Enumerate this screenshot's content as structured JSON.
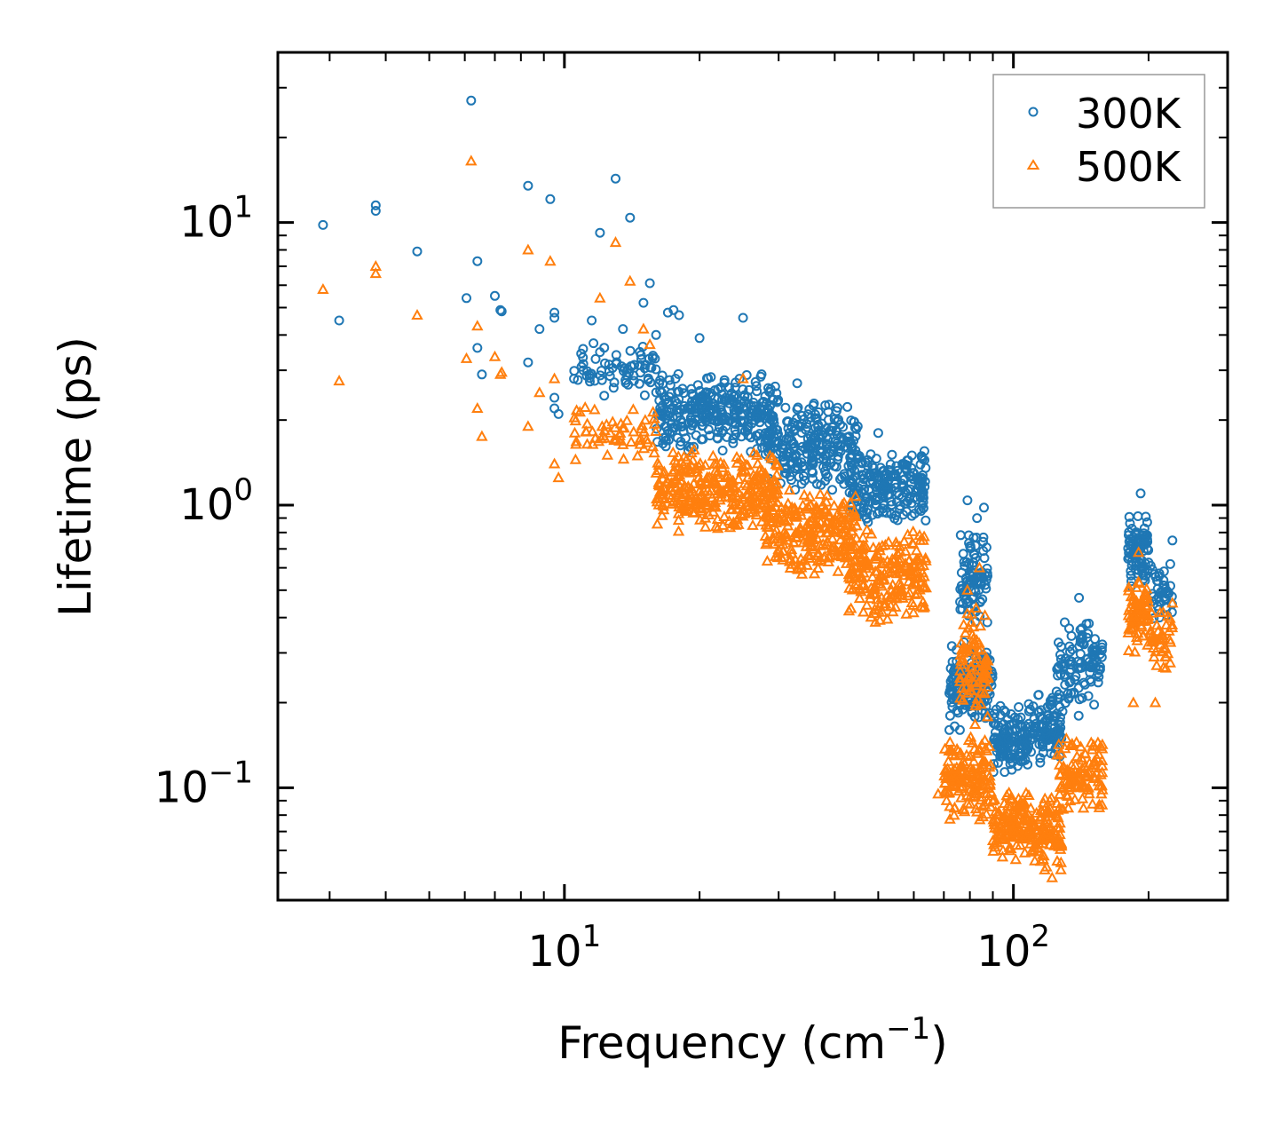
{
  "chart_data": {
    "type": "scatter",
    "xscale": "log",
    "yscale": "log",
    "xlim": [
      2.3,
      300
    ],
    "ylim": [
      0.04,
      40
    ],
    "xlabel": "Frequency (cm",
    "xlabel_sup": "−1",
    "xlabel_end": ")",
    "ylabel": "Lifetime (ps)",
    "x_ticks": [
      {
        "value": 10,
        "base": "10",
        "exp": "1"
      },
      {
        "value": 100,
        "base": "10",
        "exp": "2"
      }
    ],
    "y_ticks": [
      {
        "value": 0.1,
        "base": "10",
        "exp": "−1"
      },
      {
        "value": 1,
        "base": "10",
        "exp": "0"
      },
      {
        "value": 10,
        "base": "10",
        "exp": "1"
      }
    ],
    "legend_position": "top-right",
    "series": [
      {
        "name": "300K",
        "marker": "circle",
        "color": "#1f77b4",
        "points": [
          [
            2.9,
            9.8
          ],
          [
            3.15,
            4.5
          ],
          [
            3.8,
            11.5
          ],
          [
            3.8,
            11.0
          ],
          [
            4.7,
            7.9
          ],
          [
            6.05,
            5.4
          ],
          [
            6.2,
            27
          ],
          [
            6.4,
            3.6
          ],
          [
            6.4,
            7.3
          ],
          [
            6.55,
            2.9
          ],
          [
            7.0,
            5.5
          ],
          [
            7.2,
            4.9
          ],
          [
            7.25,
            4.85
          ],
          [
            8.3,
            13.5
          ],
          [
            8.3,
            3.2
          ],
          [
            8.8,
            4.2
          ],
          [
            9.3,
            12.1
          ],
          [
            9.5,
            4.6
          ],
          [
            9.5,
            4.8
          ],
          [
            9.5,
            2.4
          ],
          [
            9.5,
            2.2
          ],
          [
            9.7,
            2.1
          ],
          [
            10.5,
            2.8
          ],
          [
            11.5,
            4.5
          ],
          [
            12.0,
            9.2
          ],
          [
            13.0,
            14.3
          ],
          [
            13.5,
            4.2
          ],
          [
            14.0,
            10.4
          ],
          [
            15.0,
            5.2
          ],
          [
            15.5,
            6.1
          ],
          [
            16.0,
            4.0
          ],
          [
            17.0,
            4.8
          ],
          [
            17.5,
            4.9
          ],
          [
            18.0,
            4.7
          ],
          [
            20.0,
            3.9
          ],
          [
            25.0,
            4.6
          ],
          [
            33.0,
            2.7
          ],
          [
            45.0,
            1.9
          ],
          [
            50.0,
            1.8
          ],
          [
            57.0,
            1.4
          ],
          [
            60.0,
            1.3
          ],
          [
            62.0,
            1.25
          ],
          [
            72.0,
            0.16
          ],
          [
            74.0,
            0.165
          ],
          [
            76.0,
            0.16
          ],
          [
            79.0,
            1.04
          ],
          [
            83.0,
            0.9
          ],
          [
            86.0,
            0.98
          ],
          [
            140.0,
            0.47
          ],
          [
            192.0,
            1.1
          ],
          [
            226.0,
            0.75
          ]
        ],
        "clusters": [
          {
            "x": [
              10.5,
              16
            ],
            "y": [
              2.4,
              3.8
            ],
            "n": 70
          },
          {
            "x": [
              16,
              30
            ],
            "y": [
              1.5,
              3.0
            ],
            "n": 320
          },
          {
            "x": [
              28,
              45
            ],
            "y": [
              1.1,
              2.4
            ],
            "n": 240
          },
          {
            "x": [
              43,
              64
            ],
            "y": [
              0.85,
              1.6
            ],
            "n": 220
          },
          {
            "x": [
              76,
              88
            ],
            "y": [
              0.35,
              0.85
            ],
            "n": 90
          },
          {
            "x": [
              72,
              90
            ],
            "y": [
              0.17,
              0.33
            ],
            "n": 150
          },
          {
            "x": [
              90,
              108
            ],
            "y": [
              0.11,
              0.2
            ],
            "n": 130
          },
          {
            "x": [
              108,
              128
            ],
            "y": [
              0.12,
              0.22
            ],
            "n": 110
          },
          {
            "x": [
              125,
              158
            ],
            "y": [
              0.17,
              0.42
            ],
            "n": 110
          },
          {
            "x": [
              180,
              200
            ],
            "y": [
              0.5,
              0.95
            ],
            "n": 80
          },
          {
            "x": [
              202,
              226
            ],
            "y": [
              0.38,
              0.65
            ],
            "n": 40
          }
        ]
      },
      {
        "name": "500K",
        "marker": "triangle",
        "color": "#ff7f0e",
        "points": [
          [
            2.9,
            5.8
          ],
          [
            3.15,
            2.75
          ],
          [
            3.8,
            7.0
          ],
          [
            3.8,
            6.6
          ],
          [
            4.7,
            4.7
          ],
          [
            6.05,
            3.3
          ],
          [
            6.2,
            16.5
          ],
          [
            6.4,
            2.2
          ],
          [
            6.4,
            4.3
          ],
          [
            6.55,
            1.75
          ],
          [
            7.0,
            3.35
          ],
          [
            7.2,
            2.9
          ],
          [
            7.25,
            2.95
          ],
          [
            8.3,
            8.0
          ],
          [
            8.3,
            1.9
          ],
          [
            8.8,
            2.5
          ],
          [
            9.3,
            7.3
          ],
          [
            9.5,
            2.8
          ],
          [
            9.5,
            1.4
          ],
          [
            9.7,
            1.25
          ],
          [
            12.0,
            5.4
          ],
          [
            13.0,
            8.5
          ],
          [
            14.0,
            6.2
          ],
          [
            15.0,
            4.2
          ],
          [
            15.5,
            3.7
          ],
          [
            25.0,
            2.8
          ],
          [
            62.0,
            0.75
          ],
          [
            68.0,
            0.095
          ],
          [
            71.0,
            0.09
          ],
          [
            74.0,
            0.085
          ],
          [
            79.0,
            0.5
          ],
          [
            84.0,
            0.6
          ],
          [
            110.0,
            0.06
          ],
          [
            122.0,
            0.048
          ],
          [
            190.0,
            0.68
          ],
          [
            185.0,
            0.2
          ],
          [
            207.0,
            0.2
          ],
          [
            226.0,
            0.45
          ]
        ],
        "clusters": [
          {
            "x": [
              10.5,
              16
            ],
            "y": [
              1.4,
              2.3
            ],
            "n": 60
          },
          {
            "x": [
              16,
              30
            ],
            "y": [
              0.8,
              1.6
            ],
            "n": 320
          },
          {
            "x": [
              28,
              45
            ],
            "y": [
              0.55,
              1.2
            ],
            "n": 240
          },
          {
            "x": [
              43,
              64
            ],
            "y": [
              0.38,
              0.85
            ],
            "n": 220
          },
          {
            "x": [
              76,
              88
            ],
            "y": [
              0.16,
              0.45
            ],
            "n": 90
          },
          {
            "x": [
              70,
              90
            ],
            "y": [
              0.075,
              0.16
            ],
            "n": 150
          },
          {
            "x": [
              90,
              108
            ],
            "y": [
              0.055,
              0.1
            ],
            "n": 130
          },
          {
            "x": [
              108,
              128
            ],
            "y": [
              0.05,
              0.1
            ],
            "n": 110
          },
          {
            "x": [
              125,
              158
            ],
            "y": [
              0.08,
              0.16
            ],
            "n": 110
          },
          {
            "x": [
              180,
              200
            ],
            "y": [
              0.3,
              0.55
            ],
            "n": 80
          },
          {
            "x": [
              202,
              226
            ],
            "y": [
              0.25,
              0.45
            ],
            "n": 40
          }
        ]
      }
    ]
  }
}
